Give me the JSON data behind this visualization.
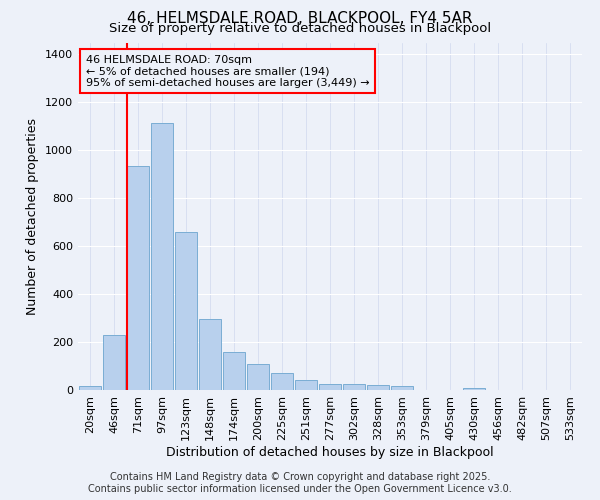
{
  "title": "46, HELMSDALE ROAD, BLACKPOOL, FY4 5AR",
  "subtitle": "Size of property relative to detached houses in Blackpool",
  "xlabel": "Distribution of detached houses by size in Blackpool",
  "ylabel": "Number of detached properties",
  "categories": [
    "20sqm",
    "46sqm",
    "71sqm",
    "97sqm",
    "123sqm",
    "148sqm",
    "174sqm",
    "200sqm",
    "225sqm",
    "251sqm",
    "277sqm",
    "302sqm",
    "328sqm",
    "353sqm",
    "379sqm",
    "405sqm",
    "430sqm",
    "456sqm",
    "482sqm",
    "507sqm",
    "533sqm"
  ],
  "values": [
    15,
    230,
    935,
    1115,
    660,
    295,
    160,
    110,
    70,
    40,
    25,
    25,
    20,
    15,
    0,
    0,
    10,
    0,
    0,
    0,
    0
  ],
  "bar_color": "#b8d0ed",
  "bar_edge_color": "#7aadd4",
  "background_color": "#edf1f9",
  "ylim": [
    0,
    1450
  ],
  "yticks": [
    0,
    200,
    400,
    600,
    800,
    1000,
    1200,
    1400
  ],
  "red_line_index": 2,
  "annotation_line1": "46 HELMSDALE ROAD: 70sqm",
  "annotation_line2": "← 5% of detached houses are smaller (194)",
  "annotation_line3": "95% of semi-detached houses are larger (3,449) →",
  "footer_line1": "Contains HM Land Registry data © Crown copyright and database right 2025.",
  "footer_line2": "Contains public sector information licensed under the Open Government Licence v3.0.",
  "title_fontsize": 11,
  "subtitle_fontsize": 9.5,
  "tick_fontsize": 8,
  "ylabel_fontsize": 9,
  "xlabel_fontsize": 9,
  "annotation_fontsize": 8,
  "footer_fontsize": 7
}
